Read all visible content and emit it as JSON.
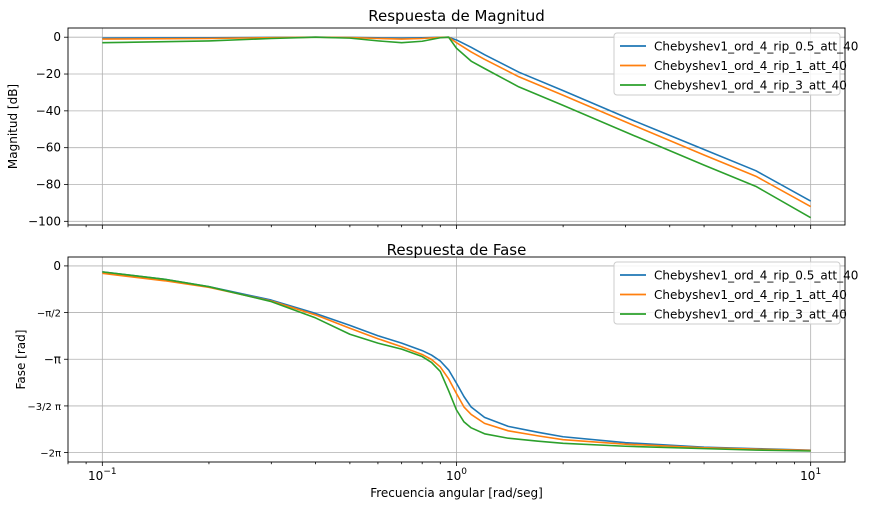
{
  "chart_data": [
    {
      "type": "line",
      "title": "Respuesta de Magnitud",
      "ylabel": "Magnitud [dB]",
      "xlabel": "",
      "xscale": "log",
      "xlim": [
        0.08,
        12.5
      ],
      "ylim": [
        -102,
        5
      ],
      "grid": true,
      "legend_position": "top-right",
      "yticks": [
        {
          "value": 0,
          "label": "0"
        },
        {
          "value": -20,
          "label": "−20"
        },
        {
          "value": -40,
          "label": "−40"
        },
        {
          "value": -60,
          "label": "−60"
        },
        {
          "value": -80,
          "label": "−80"
        },
        {
          "value": -100,
          "label": "−100"
        }
      ],
      "x": [
        0.1,
        0.2,
        0.3,
        0.4,
        0.5,
        0.6,
        0.7,
        0.8,
        0.9,
        0.95,
        1.0,
        1.1,
        1.2,
        1.5,
        2,
        3,
        5,
        7,
        10
      ],
      "series": [
        {
          "name": "Chebyshev1_ord_4_rip_0.5_att_40",
          "color": "#1f77b4",
          "values": [
            -0.5,
            -0.35,
            -0.1,
            0,
            -0.1,
            -0.35,
            -0.5,
            -0.35,
            -0.05,
            0,
            -1.5,
            -5.5,
            -9.5,
            -19,
            -29,
            -43.5,
            -61,
            -72.5,
            -89
          ]
        },
        {
          "name": "Chebyshev1_ord_4_rip_1_att_40",
          "color": "#ff7f0e",
          "values": [
            -1,
            -0.7,
            -0.25,
            0,
            -0.2,
            -0.7,
            -1,
            -0.7,
            -0.15,
            0,
            -3,
            -8,
            -12,
            -21.5,
            -31.5,
            -46,
            -64,
            -75.5,
            -92
          ]
        },
        {
          "name": "Chebyshev1_ord_4_rip_3_att_40",
          "color": "#2ca02c",
          "values": [
            -3,
            -2,
            -0.7,
            0,
            -0.5,
            -2,
            -3,
            -2.2,
            -0.3,
            0,
            -6,
            -13,
            -17,
            -27,
            -37,
            -51.5,
            -69.5,
            -81,
            -98
          ]
        }
      ]
    },
    {
      "type": "line",
      "title": "Respuesta de Fase",
      "ylabel": "Fase [rad]",
      "xlabel": "Frecuencia angular [rad/seg]",
      "xscale": "log",
      "xlim": [
        0.08,
        12.5
      ],
      "ylim": [
        -6.6,
        0.3
      ],
      "grid": true,
      "legend_position": "top-right",
      "yticks": [
        {
          "value": 0,
          "label": "0"
        },
        {
          "value": -1.5708,
          "label": "−π/2"
        },
        {
          "value": -3.1416,
          "label": "−π"
        },
        {
          "value": -4.7124,
          "label": "−3/2 π"
        },
        {
          "value": -6.2832,
          "label": "−2π"
        }
      ],
      "xticks": [
        {
          "value": 0.1,
          "base": "10",
          "exp": "−1"
        },
        {
          "value": 1,
          "base": "10",
          "exp": "0"
        },
        {
          "value": 10,
          "base": "10",
          "exp": "1"
        }
      ],
      "x": [
        0.1,
        0.15,
        0.2,
        0.3,
        0.4,
        0.5,
        0.6,
        0.7,
        0.8,
        0.85,
        0.9,
        0.95,
        1.0,
        1.05,
        1.1,
        1.2,
        1.4,
        1.7,
        2,
        3,
        5,
        7,
        10
      ],
      "series": [
        {
          "name": "Chebyshev1_ord_4_rip_0.5_att_40",
          "color": "#1f77b4",
          "values": [
            -0.2,
            -0.45,
            -0.7,
            -1.15,
            -1.6,
            -2.0,
            -2.35,
            -2.6,
            -2.85,
            -3.0,
            -3.2,
            -3.5,
            -3.95,
            -4.4,
            -4.75,
            -5.1,
            -5.4,
            -5.6,
            -5.75,
            -5.95,
            -6.1,
            -6.15,
            -6.2
          ]
        },
        {
          "name": "Chebyshev1_ord_4_rip_1_att_40",
          "color": "#ff7f0e",
          "values": [
            -0.25,
            -0.5,
            -0.72,
            -1.18,
            -1.65,
            -2.1,
            -2.45,
            -2.72,
            -2.98,
            -3.15,
            -3.4,
            -3.8,
            -4.3,
            -4.75,
            -5.0,
            -5.3,
            -5.55,
            -5.72,
            -5.85,
            -6.0,
            -6.12,
            -6.17,
            -6.21
          ]
        },
        {
          "name": "Chebyshev1_ord_4_rip_3_att_40",
          "color": "#2ca02c",
          "values": [
            -0.2,
            -0.45,
            -0.7,
            -1.2,
            -1.75,
            -2.3,
            -2.6,
            -2.8,
            -3.05,
            -3.25,
            -3.55,
            -4.2,
            -4.85,
            -5.25,
            -5.45,
            -5.65,
            -5.8,
            -5.9,
            -5.97,
            -6.07,
            -6.15,
            -6.2,
            -6.23
          ]
        }
      ]
    }
  ]
}
